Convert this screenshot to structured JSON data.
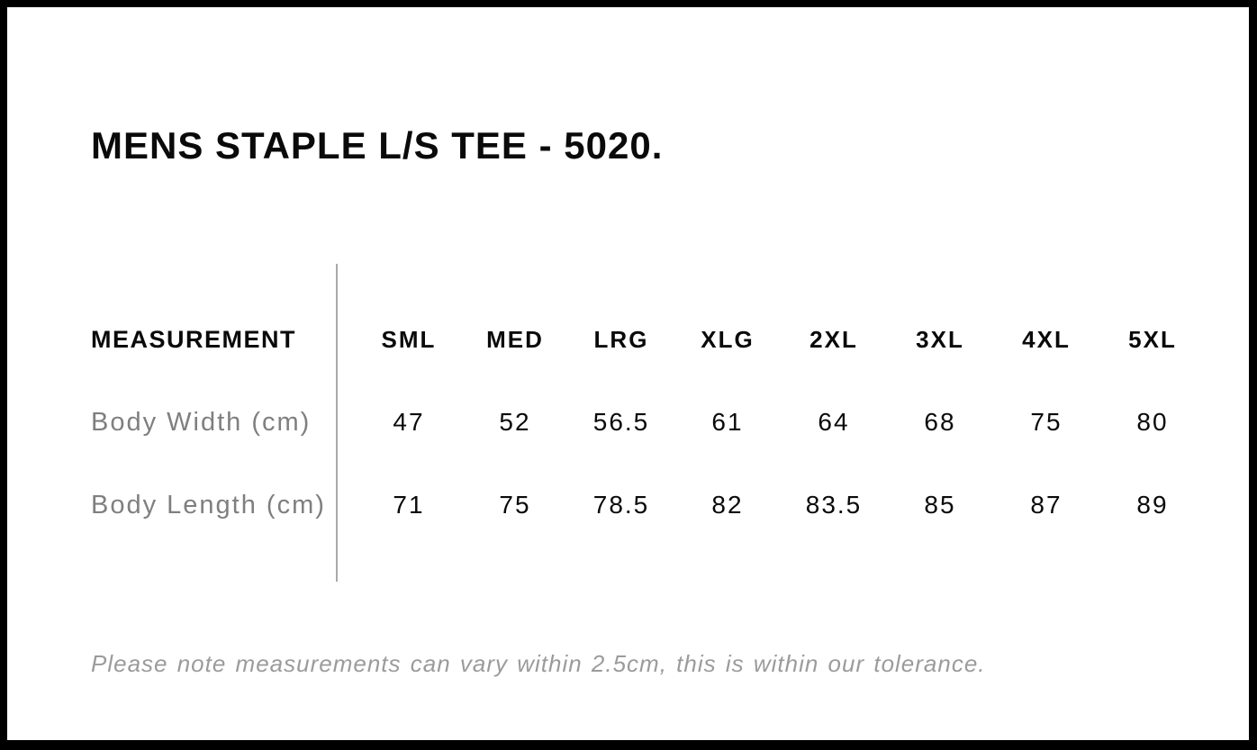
{
  "title": "MENS STAPLE L/S TEE - 5020.",
  "chart_data": {
    "type": "table",
    "title": "MENS STAPLE L/S TEE - 5020.",
    "columns": [
      "MEASUREMENT",
      "SML",
      "MED",
      "LRG",
      "XLG",
      "2XL",
      "3XL",
      "4XL",
      "5XL"
    ],
    "rows": [
      {
        "label": "Body Width (cm)",
        "values": [
          "47",
          "52",
          "56.5",
          "61",
          "64",
          "68",
          "75",
          "80"
        ]
      },
      {
        "label": "Body Length (cm)",
        "values": [
          "71",
          "75",
          "78.5",
          "82",
          "83.5",
          "85",
          "87",
          "89"
        ]
      }
    ]
  },
  "note": "Please note measurements can vary within 2.5cm, this is within our tolerance.",
  "colors": {
    "frame_border": "#000000",
    "background": "#ffffff",
    "heading_text": "#0a0a0a",
    "row_label_gray": "#7f7f7f",
    "note_gray": "#9b9b9b",
    "divider_gray": "#a9a9a9"
  }
}
